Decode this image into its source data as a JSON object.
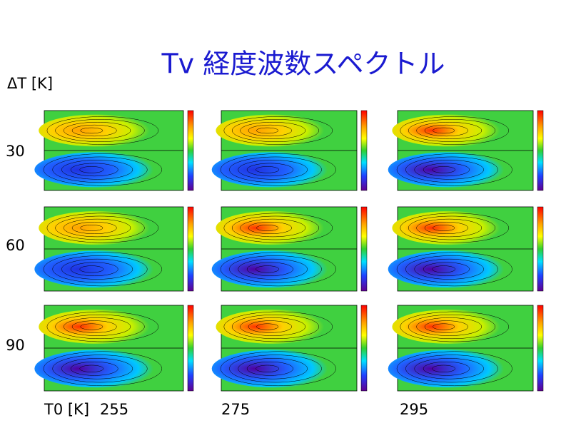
{
  "title": "Tv 経度波数スペクトル",
  "row_header": "ΔT [K]",
  "rows": [
    "30",
    "60",
    "90"
  ],
  "column_header": "T0 [K]",
  "columns": [
    "255",
    "275",
    "295"
  ]
}
